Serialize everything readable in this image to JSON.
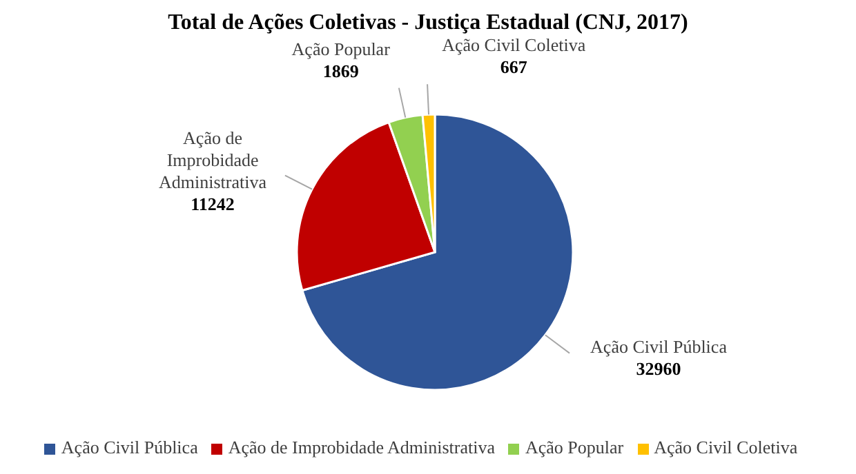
{
  "chart_data": {
    "type": "pie",
    "title": "Total de Ações Coletivas - Justiça Estadual (CNJ, 2017)",
    "categories": [
      "Ação Civil Pública",
      "Ação de Improbidade Administrativa",
      "Ação Popular",
      "Ação Civil Coletiva"
    ],
    "values": [
      32960,
      11242,
      1869,
      667
    ],
    "colors": [
      "#2f5597",
      "#c00000",
      "#92d050",
      "#ffc000"
    ],
    "data_labels": true,
    "legend": "bottom"
  }
}
